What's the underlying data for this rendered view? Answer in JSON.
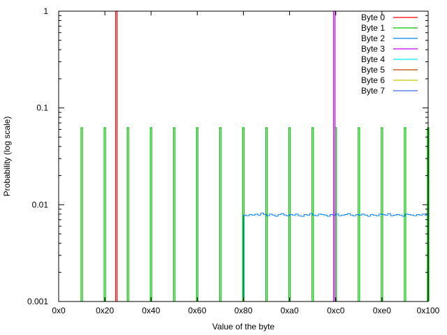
{
  "chart_data": {
    "type": "line",
    "title": "",
    "xlabel": "Value of the byte",
    "ylabel": "Probability (log scale)",
    "xlim": [
      0,
      256
    ],
    "ylim": [
      0.001,
      1
    ],
    "y_scale": "log",
    "grid": false,
    "legend_position": "top-right",
    "x_ticks": [
      {
        "value": 0,
        "label": "0x0"
      },
      {
        "value": 32,
        "label": "0x20"
      },
      {
        "value": 64,
        "label": "0x40"
      },
      {
        "value": 96,
        "label": "0x60"
      },
      {
        "value": 128,
        "label": "0x80"
      },
      {
        "value": 160,
        "label": "0xa0"
      },
      {
        "value": 192,
        "label": "0xc0"
      },
      {
        "value": 224,
        "label": "0xe0"
      },
      {
        "value": 256,
        "label": "0x100"
      }
    ],
    "y_ticks": [
      {
        "value": 0.001,
        "label": "0.001"
      },
      {
        "value": 0.01,
        "label": "0.01"
      },
      {
        "value": 0.1,
        "label": "0.1"
      },
      {
        "value": 1,
        "label": "1"
      }
    ],
    "series": [
      {
        "name": "Byte 0",
        "color": "#ff0000",
        "spikes": [
          {
            "x": 40,
            "y": 1.0
          }
        ]
      },
      {
        "name": "Byte 1",
        "color": "#00c000",
        "spikes": [
          {
            "x": 16,
            "y": 0.0625
          },
          {
            "x": 32,
            "y": 0.0625
          },
          {
            "x": 48,
            "y": 0.0625
          },
          {
            "x": 64,
            "y": 0.0625
          },
          {
            "x": 80,
            "y": 0.0625
          },
          {
            "x": 96,
            "y": 0.0625
          },
          {
            "x": 112,
            "y": 0.0625
          },
          {
            "x": 128,
            "y": 0.0625
          },
          {
            "x": 144,
            "y": 0.0625
          },
          {
            "x": 160,
            "y": 0.0625
          },
          {
            "x": 176,
            "y": 0.0625
          },
          {
            "x": 192,
            "y": 0.0625
          },
          {
            "x": 208,
            "y": 0.0625
          },
          {
            "x": 224,
            "y": 0.0625
          },
          {
            "x": 240,
            "y": 0.0625
          },
          {
            "x": 256,
            "y": 0.0625
          }
        ]
      },
      {
        "name": "Byte 2",
        "color": "#0080ff",
        "x_start": 128,
        "x_end": 256,
        "level": 0.0078,
        "values": [
          0.0078,
          0.0077,
          0.0079,
          0.0078,
          0.008,
          0.0078,
          0.0082,
          0.0079,
          0.0077,
          0.008,
          0.0078,
          0.0076,
          0.0079,
          0.0081,
          0.0078,
          0.0077,
          0.0079,
          0.0078,
          0.008,
          0.0077,
          0.0076,
          0.0079,
          0.0078,
          0.0081,
          0.0078,
          0.0077,
          0.008,
          0.0079,
          0.0078,
          0.0076,
          0.0079,
          0.0078,
          0.008,
          0.0077,
          0.0078,
          0.0079,
          0.0081,
          0.0078,
          0.0077,
          0.0079,
          0.0078,
          0.008,
          0.0078,
          0.0076,
          0.0079,
          0.0078,
          0.0077,
          0.008,
          0.0079,
          0.0078,
          0.0081,
          0.0077,
          0.0078,
          0.0079,
          0.0078,
          0.0076,
          0.008,
          0.0079,
          0.0078,
          0.0077,
          0.0079,
          0.0078,
          0.008,
          0.0078
        ]
      },
      {
        "name": "Byte 3",
        "color": "#c000ff",
        "spikes": [
          {
            "x": 191,
            "y": 1.0
          }
        ]
      },
      {
        "name": "Byte 4",
        "color": "#00eeee",
        "spikes": []
      },
      {
        "name": "Byte 5",
        "color": "#c04000",
        "spikes": []
      },
      {
        "name": "Byte 6",
        "color": "#c8c800",
        "spikes": []
      },
      {
        "name": "Byte 7",
        "color": "#4169e1",
        "spikes": []
      }
    ]
  }
}
